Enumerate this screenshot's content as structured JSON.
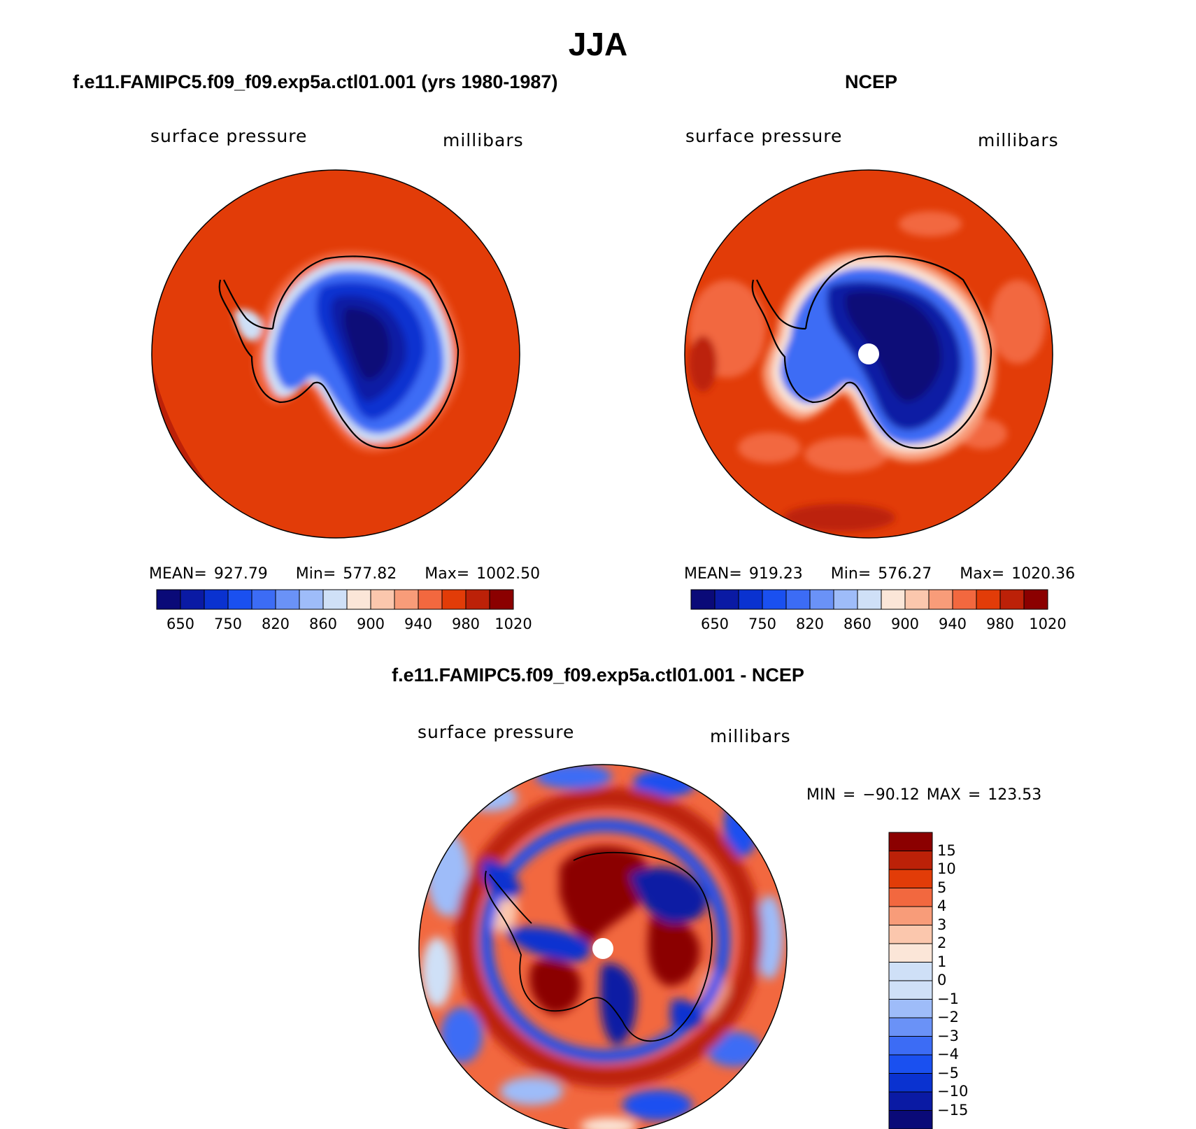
{
  "figure_title": "JJA",
  "colors": {
    "levels": [
      "#0a0a78",
      "#0a1aa4",
      "#0a32d0",
      "#1a50f0",
      "#3c6cf5",
      "#6a92f7",
      "#9ebcf9",
      "#cfe0f7",
      "#fbe6d8",
      "#fbc7ad",
      "#f89c79",
      "#f2683f",
      "#e23c08",
      "#bc2108",
      "#8b0000"
    ],
    "land_mask": "#ffffff"
  },
  "panels": {
    "model": {
      "title": "f.e11.FAMIPC5.f09_f09.exp5a.ctl01.001 (yrs 1980-1987)",
      "left_label": "surface pressure",
      "right_label": "millibars",
      "stats": {
        "mean_label": "MEAN=",
        "mean": "927.79",
        "min_label": "Min=",
        "min": "577.82",
        "max_label": "Max=",
        "max": "1002.50"
      },
      "colorbar_ticks": [
        "650",
        "750",
        "820",
        "860",
        "900",
        "940",
        "980",
        "1020"
      ]
    },
    "obs": {
      "title": "NCEP",
      "left_label": "surface pressure",
      "right_label": "millibars",
      "stats": {
        "mean_label": "MEAN=",
        "mean": "919.23",
        "min_label": "Min=",
        "min": "576.27",
        "max_label": "Max=",
        "max": "1020.36"
      },
      "colorbar_ticks": [
        "650",
        "750",
        "820",
        "860",
        "900",
        "940",
        "980",
        "1020"
      ]
    },
    "diff": {
      "title": "f.e11.FAMIPC5.f09_f09.exp5a.ctl01.001 - NCEP",
      "left_label": "surface pressure",
      "right_label": "millibars",
      "minmax": "MIN = −90.12  MAX = 123.53",
      "colorbar_ticks": [
        "15",
        "10",
        "5",
        "4",
        "3",
        "2",
        "1",
        "0",
        "−1",
        "−2",
        "−3",
        "−4",
        "−5",
        "−10",
        "−15"
      ]
    }
  }
}
